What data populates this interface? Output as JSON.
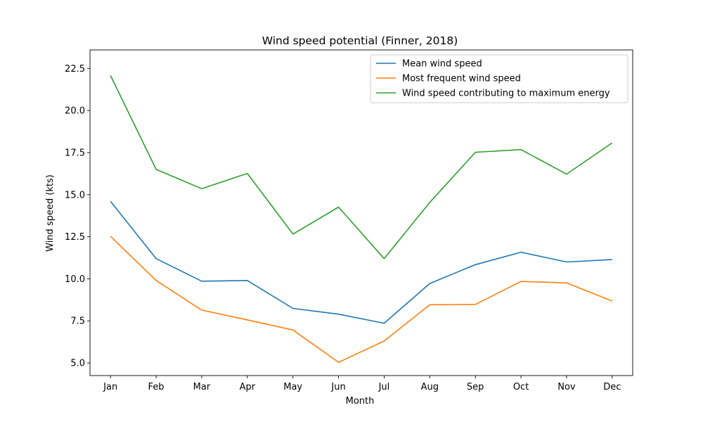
{
  "chart_data": {
    "type": "line",
    "title": "Wind speed potential (Finner, 2018)",
    "xlabel": "Month",
    "ylabel": "Wind speed (kts)",
    "categories": [
      "Jan",
      "Feb",
      "Mar",
      "Apr",
      "May",
      "Jun",
      "Jul",
      "Aug",
      "Sep",
      "Oct",
      "Nov",
      "Dec"
    ],
    "yticks": [
      "5.0",
      "7.5",
      "10.0",
      "12.5",
      "15.0",
      "17.5",
      "20.0",
      "22.5"
    ],
    "ylim": [
      4.25,
      23.6
    ],
    "grid": false,
    "legend_position": "top-right",
    "series": [
      {
        "name": "Mean wind speed",
        "color": "#1f77b4",
        "values": [
          14.6,
          11.2,
          9.86,
          9.9,
          8.24,
          7.9,
          7.36,
          9.72,
          10.84,
          11.58,
          11.0,
          11.14
        ]
      },
      {
        "name": "Most frequent wind speed",
        "color": "#ff7f0e",
        "values": [
          12.52,
          9.9,
          8.14,
          7.56,
          6.96,
          5.04,
          6.3,
          8.46,
          8.48,
          9.84,
          9.76,
          8.68
        ]
      },
      {
        "name": "Wind speed contributing to maximum energy",
        "color": "#2ca02c",
        "values": [
          22.08,
          16.5,
          15.36,
          16.26,
          12.66,
          14.26,
          11.2,
          14.54,
          17.52,
          17.68,
          16.22,
          18.08
        ]
      }
    ]
  }
}
